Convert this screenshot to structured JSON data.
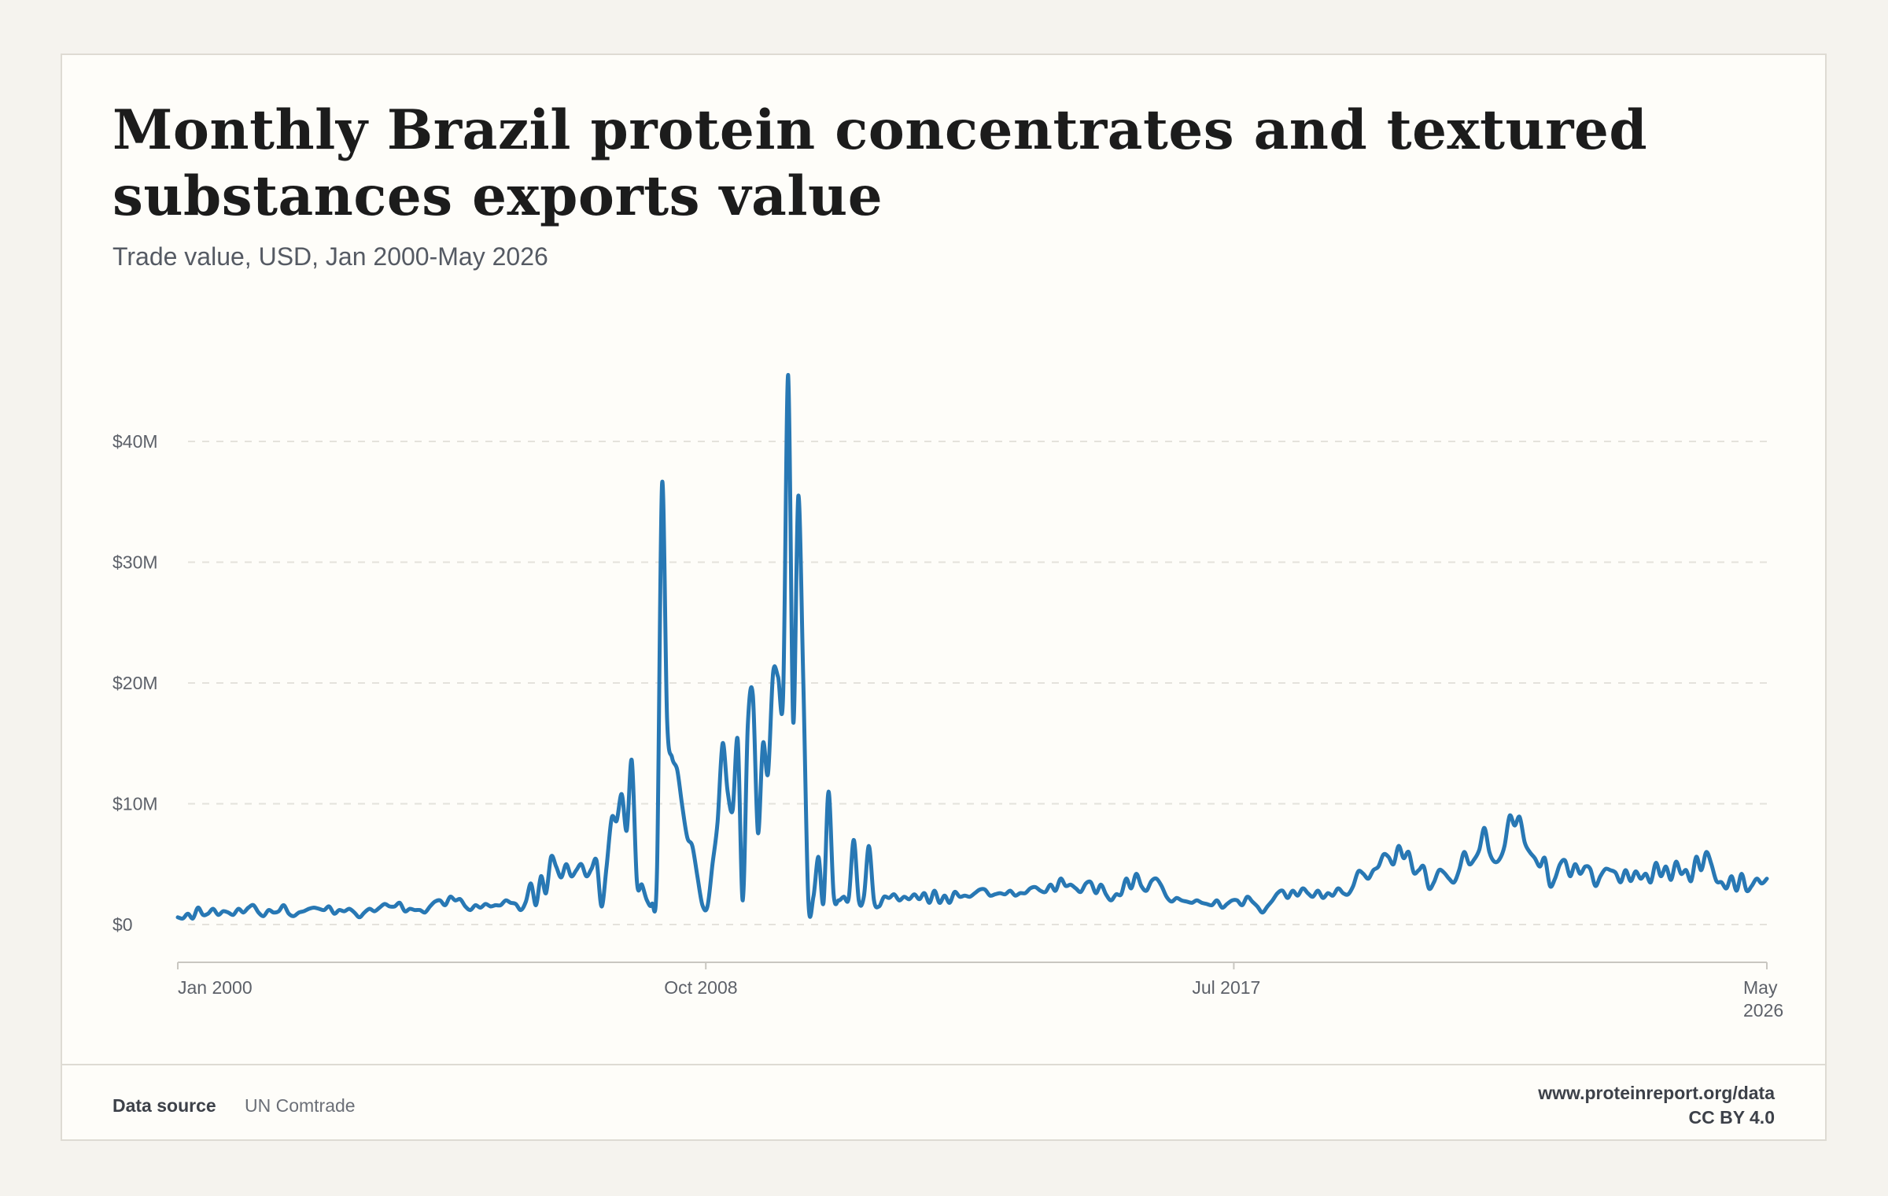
{
  "header": {
    "title": "Monthly Brazil protein concentrates and textured substances exports value",
    "subtitle": "Trade value, USD, Jan 2000-May 2026"
  },
  "footer": {
    "source_label": "Data source",
    "source_value": "UN Comtrade",
    "site": "www.proteinreport.org/data",
    "license": "CC BY 4.0"
  },
  "colors": {
    "line": "#2878b4",
    "grid": "#e4e2dc",
    "axis": "#c9c7c1"
  },
  "chart_data": {
    "type": "line",
    "x_start": "2000-01",
    "x_end": "2026-05",
    "x_tick_labels": [
      "Jan 2000",
      "Oct 2008",
      "Jul 2017",
      "May 2026"
    ],
    "y_ticks": [
      0,
      10,
      20,
      30,
      40
    ],
    "y_tick_labels": [
      "$0",
      "$10M",
      "$20M",
      "$30M",
      "$40M"
    ],
    "ylim": [
      0,
      46
    ],
    "grid": "horizontal dashed",
    "series": [
      {
        "values": [
          0.6,
          0.5,
          0.9,
          0.5,
          1.4,
          0.8,
          0.9,
          1.3,
          0.8,
          1.1,
          1.0,
          0.8,
          1.3,
          1.0,
          1.4,
          1.6,
          1.0,
          0.7,
          1.2,
          1.0,
          1.1,
          1.6,
          0.9,
          0.7,
          1.0,
          1.1,
          1.3,
          1.4,
          1.3,
          1.2,
          1.5,
          0.9,
          1.2,
          1.1,
          1.3,
          1.0,
          0.6,
          1.0,
          1.3,
          1.1,
          1.4,
          1.7,
          1.5,
          1.5,
          1.8,
          1.1,
          1.3,
          1.2,
          1.2,
          1.0,
          1.5,
          1.9,
          2.0,
          1.6,
          2.3,
          2.0,
          2.1,
          1.5,
          1.2,
          1.6,
          1.4,
          1.7,
          1.5,
          1.6,
          1.6,
          2.0,
          1.8,
          1.7,
          1.2,
          1.9,
          3.4,
          1.6,
          4.0,
          2.6,
          5.6,
          4.8,
          3.9,
          5.0,
          4.0,
          4.5,
          5.0,
          4.0,
          4.6,
          5.3,
          1.5,
          4.8,
          8.8,
          8.6,
          10.8,
          7.8,
          13.6,
          3.6,
          3.3,
          2.0,
          1.7,
          4.5,
          36.5,
          17.0,
          13.8,
          12.8,
          9.8,
          7.2,
          6.5,
          4.0,
          1.6,
          1.5,
          5.0,
          8.5,
          15.0,
          11.0,
          9.5,
          15.3,
          2.0,
          16.5,
          19.0,
          7.6,
          15.0,
          12.5,
          20.8,
          20.5,
          19.0,
          45.5,
          16.8,
          35.5,
          20.0,
          2.0,
          2.3,
          5.6,
          1.8,
          11.0,
          2.5,
          2.0,
          2.3,
          2.2,
          7.0,
          2.0,
          2.3,
          6.5,
          2.0,
          1.5,
          2.3,
          2.2,
          2.5,
          2.0,
          2.3,
          2.1,
          2.5,
          2.1,
          2.6,
          1.8,
          2.8,
          1.8,
          2.4,
          1.8,
          2.7,
          2.3,
          2.4,
          2.3,
          2.6,
          2.9,
          2.9,
          2.4,
          2.5,
          2.6,
          2.5,
          2.8,
          2.4,
          2.6,
          2.6,
          3.0,
          3.1,
          2.8,
          2.7,
          3.3,
          2.8,
          3.8,
          3.2,
          3.3,
          3.0,
          2.7,
          3.4,
          3.5,
          2.6,
          3.3,
          2.5,
          2.0,
          2.5,
          2.5,
          3.8,
          3.0,
          4.2,
          3.2,
          2.8,
          3.6,
          3.8,
          3.2,
          2.3,
          1.9,
          2.2,
          2.0,
          1.9,
          1.8,
          2.0,
          1.8,
          1.7,
          1.6,
          2.0,
          1.4,
          1.7,
          2.0,
          2.0,
          1.6,
          2.3,
          1.9,
          1.5,
          1.0,
          1.5,
          2.0,
          2.6,
          2.8,
          2.2,
          2.8,
          2.4,
          3.0,
          2.6,
          2.3,
          2.8,
          2.2,
          2.6,
          2.4,
          3.0,
          2.6,
          2.5,
          3.2,
          4.4,
          4.2,
          3.8,
          4.5,
          4.8,
          5.8,
          5.6,
          5.0,
          6.5,
          5.5,
          6.0,
          4.3,
          4.5,
          4.8,
          3.0,
          3.5,
          4.5,
          4.3,
          3.8,
          3.5,
          4.5,
          6.0,
          5.0,
          5.4,
          6.2,
          8.0,
          6.0,
          5.2,
          5.4,
          6.5,
          9.0,
          8.2,
          8.9,
          6.8,
          6.0,
          5.5,
          4.8,
          5.5,
          3.2,
          3.8,
          5.0,
          5.3,
          4.0,
          5.0,
          4.2,
          4.8,
          4.6,
          3.2,
          4.0,
          4.6,
          4.5,
          4.3,
          3.5,
          4.5,
          3.6,
          4.4,
          3.8,
          4.2,
          3.5,
          5.1,
          4.0,
          4.8,
          3.7,
          5.2,
          4.2,
          4.5,
          3.6,
          5.6,
          4.5,
          6.0,
          5.0,
          3.6,
          3.5,
          3.0,
          4.0,
          2.8,
          4.2,
          2.8,
          3.2,
          3.8,
          3.4,
          3.8
        ]
      }
    ]
  }
}
